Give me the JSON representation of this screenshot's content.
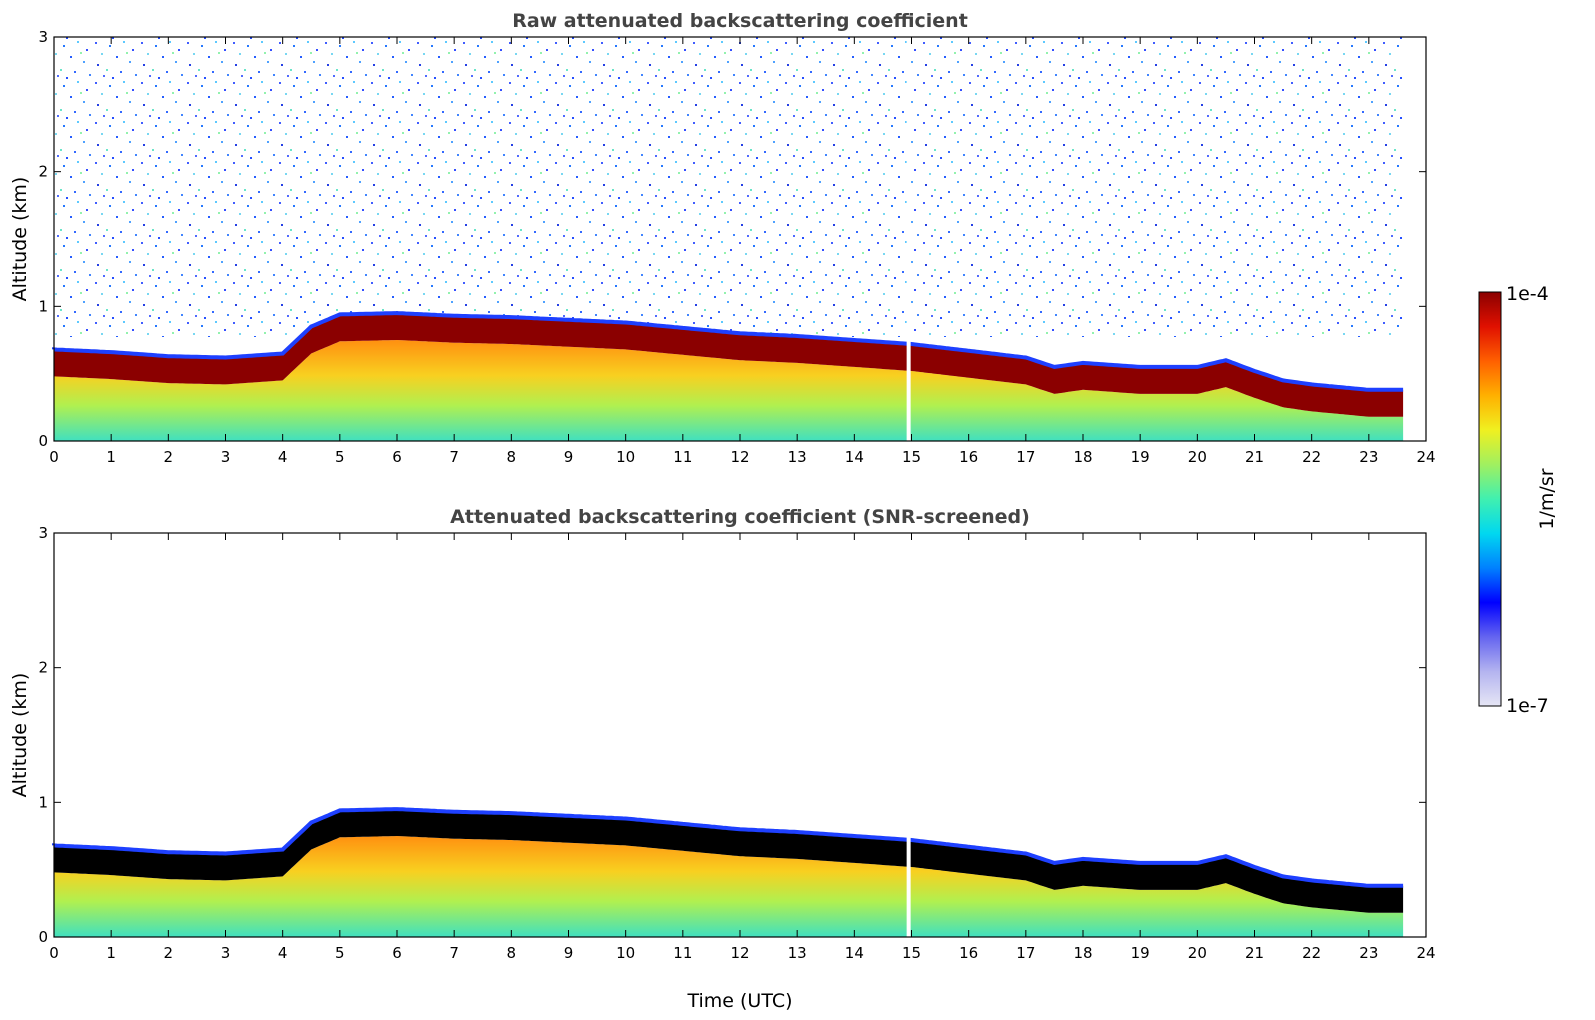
{
  "chart_data": [
    {
      "type": "heatmap",
      "title": "Raw attenuated backscattering coefficient",
      "xlabel": "",
      "ylabel": "Altitude (km)",
      "xlim": [
        0,
        24
      ],
      "ylim": [
        0,
        3
      ],
      "x_ticks": [
        "0",
        "1",
        "2",
        "3",
        "4",
        "5",
        "6",
        "7",
        "8",
        "9",
        "10",
        "11",
        "12",
        "13",
        "14",
        "15",
        "16",
        "17",
        "18",
        "19",
        "20",
        "21",
        "22",
        "23",
        "24"
      ],
      "y_ticks": [
        "0",
        "1",
        "2",
        "3"
      ],
      "data_end_time": 23.6,
      "gaps_time": [
        14.95
      ],
      "layer_top_km": [
        [
          0,
          0.68
        ],
        [
          1,
          0.66
        ],
        [
          2,
          0.63
        ],
        [
          3,
          0.62
        ],
        [
          4,
          0.65
        ],
        [
          4.5,
          0.85
        ],
        [
          5,
          0.94
        ],
        [
          6,
          0.95
        ],
        [
          7,
          0.93
        ],
        [
          8,
          0.92
        ],
        [
          9,
          0.9
        ],
        [
          10,
          0.88
        ],
        [
          11,
          0.84
        ],
        [
          12,
          0.8
        ],
        [
          13,
          0.78
        ],
        [
          14,
          0.75
        ],
        [
          15,
          0.72
        ],
        [
          16,
          0.67
        ],
        [
          17,
          0.62
        ],
        [
          17.5,
          0.55
        ],
        [
          18,
          0.58
        ],
        [
          19,
          0.55
        ],
        [
          20,
          0.55
        ],
        [
          20.5,
          0.6
        ],
        [
          21,
          0.52
        ],
        [
          21.5,
          0.45
        ],
        [
          22,
          0.42
        ],
        [
          23,
          0.38
        ],
        [
          23.6,
          0.38
        ]
      ],
      "noise": "present"
    },
    {
      "type": "heatmap",
      "title": "Attenuated backscattering coefficient (SNR-screened)",
      "xlabel": "Time (UTC)",
      "ylabel": "Altitude (km)",
      "xlim": [
        0,
        24
      ],
      "ylim": [
        0,
        3
      ],
      "x_ticks": [
        "0",
        "1",
        "2",
        "3",
        "4",
        "5",
        "6",
        "7",
        "8",
        "9",
        "10",
        "11",
        "12",
        "13",
        "14",
        "15",
        "16",
        "17",
        "18",
        "19",
        "20",
        "21",
        "22",
        "23",
        "24"
      ],
      "y_ticks": [
        "0",
        "1",
        "2",
        "3"
      ],
      "data_end_time": 23.6,
      "gaps_time": [
        14.95
      ],
      "layer_top_km": [
        [
          0,
          0.68
        ],
        [
          1,
          0.66
        ],
        [
          2,
          0.63
        ],
        [
          3,
          0.62
        ],
        [
          4,
          0.65
        ],
        [
          4.5,
          0.85
        ],
        [
          5,
          0.94
        ],
        [
          6,
          0.95
        ],
        [
          7,
          0.93
        ],
        [
          8,
          0.92
        ],
        [
          9,
          0.9
        ],
        [
          10,
          0.88
        ],
        [
          11,
          0.84
        ],
        [
          12,
          0.8
        ],
        [
          13,
          0.78
        ],
        [
          14,
          0.75
        ],
        [
          15,
          0.72
        ],
        [
          16,
          0.67
        ],
        [
          17,
          0.62
        ],
        [
          17.5,
          0.55
        ],
        [
          18,
          0.58
        ],
        [
          19,
          0.55
        ],
        [
          20,
          0.55
        ],
        [
          20.5,
          0.6
        ],
        [
          21,
          0.52
        ],
        [
          21.5,
          0.45
        ],
        [
          22,
          0.42
        ],
        [
          23,
          0.38
        ],
        [
          23.6,
          0.38
        ]
      ],
      "noise": "screened",
      "saturated_color": "#000000"
    }
  ],
  "colorbar": {
    "label": "1/m/sr",
    "max_label": "1e-4",
    "min_label": "1e-7",
    "colors": [
      "#e6e6f5",
      "#b4b4f0",
      "#6464f0",
      "#0000ff",
      "#0080ff",
      "#00d8f0",
      "#40f0b0",
      "#a0f060",
      "#f0f020",
      "#ffb000",
      "#ff6000",
      "#e01000",
      "#8b0000"
    ]
  }
}
